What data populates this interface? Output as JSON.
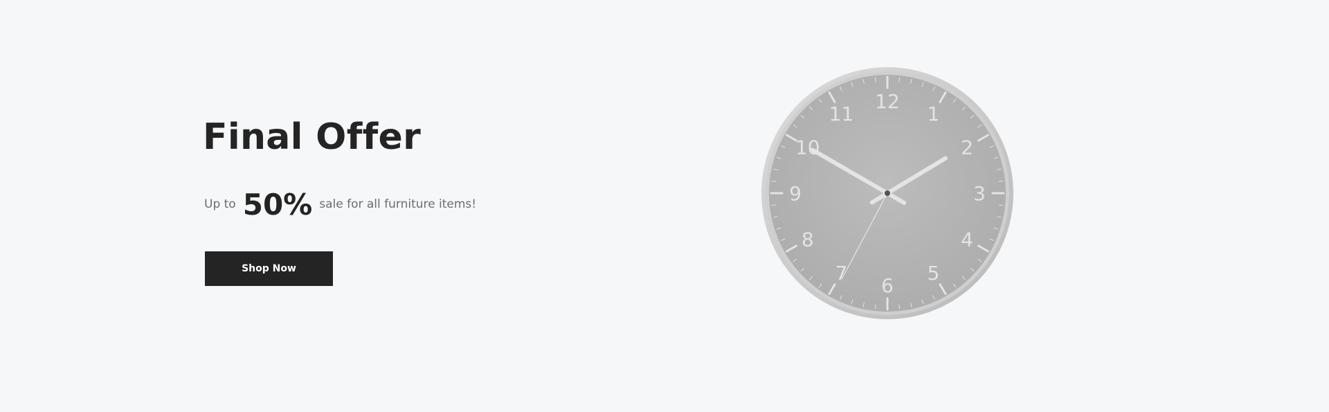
{
  "banner": {
    "title": "Final Offer",
    "offer": {
      "prefix": "Up to",
      "percent": "50%",
      "suffix": "sale for all furniture items!"
    },
    "button_label": "Shop Now"
  },
  "clock": {
    "numerals": [
      "12",
      "1",
      "2",
      "3",
      "4",
      "5",
      "6",
      "7",
      "8",
      "9",
      "10",
      "11"
    ],
    "colors": {
      "rim": "#c9c9c9",
      "face": "#b5b5b5",
      "marks": "#e4e4e4"
    }
  },
  "colors": {
    "background": "#f6f7f9",
    "text_dark": "#242424",
    "text_muted": "#6c6c6c",
    "button_bg": "#242424",
    "button_text": "#ffffff"
  }
}
